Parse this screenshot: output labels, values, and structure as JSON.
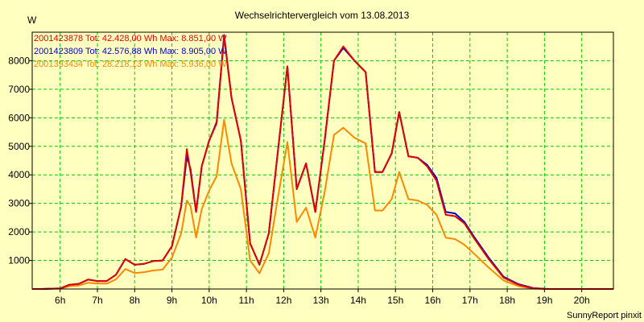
{
  "chart_data": {
    "type": "line",
    "title": "Wechselrichtervergleich vom 13.08.2013",
    "ylabel": "W",
    "xlabel": "",
    "footer": "SunnyReport pinxit",
    "ylim": [
      0,
      9000
    ],
    "xlim": [
      5.25,
      20.85
    ],
    "yticks": [
      1000,
      2000,
      3000,
      4000,
      5000,
      6000,
      7000,
      8000
    ],
    "ytick_labels": [
      "1000",
      "2000",
      "3000",
      "4000",
      "5000",
      "6000",
      "7000",
      "8000"
    ],
    "xticks": [
      6,
      7,
      8,
      9,
      10,
      11,
      12,
      13,
      14,
      15,
      16,
      17,
      18,
      19,
      20
    ],
    "xtick_labels": [
      "6h",
      "7h",
      "8h",
      "9h",
      "10h",
      "11h",
      "12h",
      "13h",
      "14h",
      "15h",
      "16h",
      "17h",
      "18h",
      "19h",
      "20h"
    ],
    "grid": true,
    "legend_position": "top-left",
    "colors": {
      "background": "#ffffc0",
      "grid": "#00cc00",
      "axis": "#000000"
    },
    "x": [
      5.25,
      5.5,
      5.75,
      6.0,
      6.25,
      6.5,
      6.75,
      7.0,
      7.25,
      7.5,
      7.75,
      8.0,
      8.25,
      8.5,
      8.75,
      9.0,
      9.25,
      9.4,
      9.5,
      9.65,
      9.8,
      10.0,
      10.2,
      10.4,
      10.6,
      10.85,
      11.1,
      11.35,
      11.6,
      11.85,
      12.1,
      12.35,
      12.6,
      12.85,
      13.1,
      13.35,
      13.6,
      13.9,
      14.2,
      14.45,
      14.65,
      14.9,
      15.1,
      15.35,
      15.6,
      15.85,
      16.1,
      16.35,
      16.6,
      16.85,
      17.1,
      17.5,
      17.9,
      18.3,
      18.7,
      19.1,
      19.5,
      19.8,
      20.0,
      20.25,
      20.5,
      20.85
    ],
    "series": [
      {
        "name": "2001423878 Tot: 42.428,00 Wh Max: 8.851,00 W",
        "color": "#e00000",
        "values": [
          0,
          0,
          10,
          20,
          150,
          180,
          330,
          280,
          280,
          500,
          1050,
          850,
          880,
          980,
          1000,
          1500,
          2900,
          4900,
          4100,
          2700,
          4300,
          5200,
          5800,
          8850,
          6700,
          5200,
          1600,
          850,
          1950,
          4900,
          7800,
          3500,
          4400,
          2700,
          5200,
          8000,
          8500,
          8000,
          7600,
          4100,
          4100,
          4750,
          6200,
          4650,
          4600,
          4300,
          3800,
          2600,
          2550,
          2300,
          1800,
          1050,
          400,
          150,
          20,
          0,
          0,
          0,
          0,
          0,
          0,
          0
        ]
      },
      {
        "name": "2001423809 Tot: 42.576,88 Wh Max: 8.905,00 W",
        "color": "#0000cc",
        "values": [
          0,
          0,
          10,
          20,
          150,
          180,
          330,
          280,
          280,
          500,
          1050,
          850,
          880,
          980,
          1000,
          1500,
          2900,
          4650,
          4200,
          2700,
          4300,
          5200,
          5850,
          8900,
          6700,
          5200,
          1600,
          850,
          1950,
          4900,
          7800,
          3500,
          4400,
          2700,
          5200,
          8000,
          8450,
          8000,
          7600,
          4100,
          4100,
          4750,
          6200,
          4650,
          4600,
          4350,
          3900,
          2700,
          2650,
          2350,
          1850,
          1100,
          430,
          170,
          30,
          0,
          0,
          0,
          0,
          0,
          0,
          0
        ]
      },
      {
        "name": "2001393434 Tot: 28.218,13 Wh Max: 5.936,00 W",
        "color": "#ff8800",
        "values": [
          0,
          0,
          5,
          10,
          100,
          120,
          220,
          190,
          190,
          340,
          700,
          560,
          590,
          650,
          680,
          1100,
          1950,
          3100,
          2900,
          1800,
          2800,
          3450,
          3950,
          5930,
          4400,
          3500,
          1000,
          550,
          1250,
          3250,
          5150,
          2350,
          2850,
          1800,
          3400,
          5400,
          5650,
          5300,
          5100,
          2750,
          2750,
          3150,
          4100,
          3150,
          3100,
          2950,
          2600,
          1800,
          1750,
          1550,
          1250,
          750,
          300,
          100,
          10,
          0,
          0,
          0,
          0,
          0,
          0,
          0
        ]
      }
    ]
  }
}
